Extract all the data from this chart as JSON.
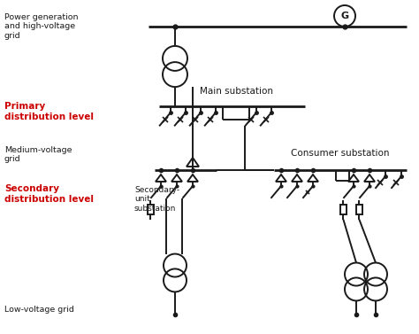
{
  "bg_color": "#ffffff",
  "line_color": "#1a1a1a",
  "red_color": "#cc0000",
  "lw": 1.4,
  "lw_thick": 2.0,
  "labels": {
    "power_gen": "Power generation\nand high-voltage\ngrid",
    "primary": "Primary\ndistribution level",
    "medium_voltage": "Medium-voltage\ngrid",
    "secondary": "Secondary\ndistribution level",
    "low_voltage": "Low-voltage grid",
    "main_substation": "Main substation",
    "secondary_unit": "Secondary-\nunit\nsubstation",
    "consumer_substation": "Consumer substation"
  }
}
